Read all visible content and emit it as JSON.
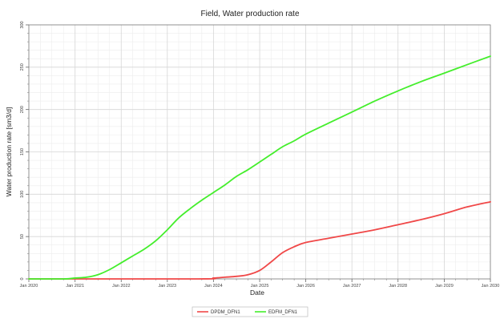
{
  "chart_data": {
    "type": "line",
    "title": "Field, Water production rate",
    "xlabel": "Date",
    "ylabel": "Water production rate [sm3/d]",
    "xlim": [
      "2020-01-01",
      "2030-01-01"
    ],
    "ylim": [
      0,
      300
    ],
    "x_ticks": [
      "Jan 2020",
      "Jan 2021",
      "Jan 2022",
      "Jan 2023",
      "Jan 2024",
      "Jan 2025",
      "Jan 2026",
      "Jan 2027",
      "Jan 2028",
      "Jan 2029",
      "Jan 2030"
    ],
    "y_ticks": [
      "0",
      "50",
      "100",
      "150",
      "200",
      "250",
      "300"
    ],
    "grid": true,
    "legend_position": "bottom",
    "series": [
      {
        "name": "DPDM_DFN1",
        "color": "#f04848",
        "x": [
          "2020-01-01",
          "2023-09-01",
          "2024-01-01",
          "2024-04-01",
          "2024-07-01",
          "2024-10-01",
          "2025-01-01",
          "2025-04-01",
          "2025-07-01",
          "2025-10-01",
          "2026-01-01",
          "2026-07-01",
          "2027-01-01",
          "2027-07-01",
          "2028-01-01",
          "2028-07-01",
          "2029-01-01",
          "2029-07-01",
          "2030-01-01"
        ],
        "values": [
          0,
          0,
          1,
          2,
          3,
          5,
          10,
          20,
          31,
          38,
          43,
          48,
          53,
          58,
          64,
          70,
          77,
          85,
          91
        ]
      },
      {
        "name": "EDFM_DFN1",
        "color": "#44ee2c",
        "x": [
          "2020-01-01",
          "2020-10-01",
          "2021-01-01",
          "2021-04-01",
          "2021-07-01",
          "2021-10-01",
          "2022-01-01",
          "2022-04-01",
          "2022-07-01",
          "2022-10-01",
          "2023-01-01",
          "2023-04-01",
          "2023-07-01",
          "2023-10-01",
          "2024-01-01",
          "2024-04-01",
          "2024-07-01",
          "2024-10-01",
          "2025-01-01",
          "2025-04-01",
          "2025-07-01",
          "2025-10-01",
          "2026-01-01",
          "2026-07-01",
          "2027-01-01",
          "2027-07-01",
          "2028-01-01",
          "2028-07-01",
          "2029-01-01",
          "2029-07-01",
          "2030-01-01"
        ],
        "values": [
          0,
          0,
          1,
          2,
          5,
          11,
          19,
          27,
          35,
          45,
          58,
          72,
          83,
          93,
          102,
          111,
          121,
          129,
          138,
          147,
          156,
          163,
          171,
          184,
          197,
          210,
          222,
          233,
          243,
          253,
          263
        ]
      }
    ]
  }
}
